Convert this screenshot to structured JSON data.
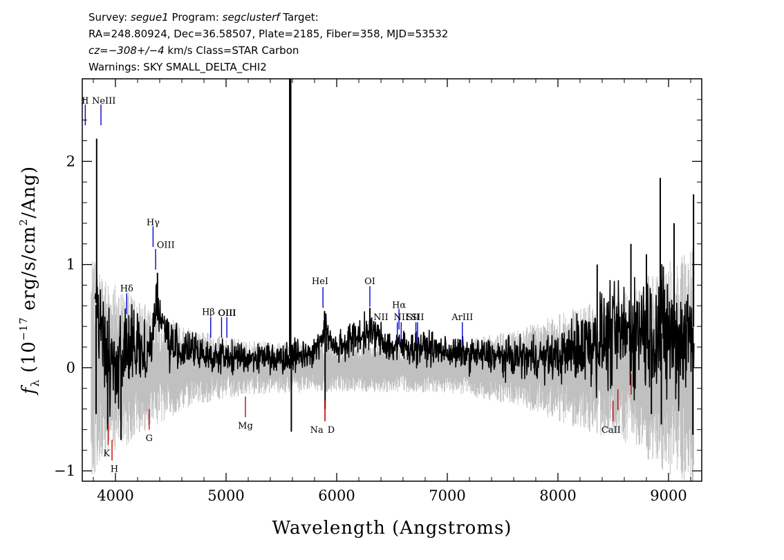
{
  "header": {
    "line1": {
      "survey_label": "Survey: ",
      "survey": "segue1",
      "program_label": " Program: ",
      "program": "segclusterf",
      "target_label": " Target:"
    },
    "line2": "RA=248.80924, Dec=36.58507, Plate=2185, Fiber=358, MJD=53532",
    "line3": {
      "cz_label": "cz=",
      "cz_value": "−308+/−4",
      "cz_rest": " km/s Class=STAR Carbon"
    },
    "line4": "Warnings: SKY SMALL_DELTA_CHI2"
  },
  "colors": {
    "flux": "#000000",
    "error": "#c0c0c0",
    "emission": "#0000cc",
    "absorption": "#cc0000"
  },
  "chart_data": {
    "type": "line",
    "xlabel": "Wavelength (Angstroms)",
    "ylabel": {
      "f": "f",
      "sub": "λ",
      "pre": " (10",
      "exp": "−17",
      "mid": " erg/s/cm",
      "exp2": "2",
      "post": "/Ang)"
    },
    "xlim": [
      3700,
      9300
    ],
    "ylim": [
      -1.1,
      2.8
    ],
    "x_ticks": [
      4000,
      5000,
      6000,
      7000,
      8000,
      9000
    ],
    "x_tick_labels": [
      "4000",
      "5000",
      "6000",
      "7000",
      "8000",
      "9000"
    ],
    "y_ticks": [
      -1,
      0,
      1,
      2
    ],
    "y_tick_labels": [
      "−1",
      "0",
      "1",
      "2"
    ],
    "flux_profile": [
      [
        3800,
        0.15
      ],
      [
        3830,
        0.7
      ],
      [
        3900,
        0.15
      ],
      [
        4000,
        0.05
      ],
      [
        4100,
        0.2
      ],
      [
        4200,
        0.15
      ],
      [
        4300,
        0.15
      ],
      [
        4380,
        0.6
      ],
      [
        4500,
        0.2
      ],
      [
        4700,
        0.15
      ],
      [
        5000,
        0.1
      ],
      [
        5500,
        0.1
      ],
      [
        5800,
        0.15
      ],
      [
        5890,
        0.35
      ],
      [
        6000,
        0.2
      ],
      [
        6300,
        0.35
      ],
      [
        6500,
        0.2
      ],
      [
        6800,
        0.2
      ],
      [
        7000,
        0.15
      ],
      [
        7500,
        0.1
      ],
      [
        8000,
        0.1
      ],
      [
        8300,
        0.25
      ],
      [
        8500,
        0.3
      ],
      [
        8800,
        0.4
      ],
      [
        8900,
        0.35
      ],
      [
        9100,
        0.25
      ],
      [
        9230,
        0.4
      ]
    ],
    "flux_noise_profile": [
      [
        3750,
        0.35
      ],
      [
        4000,
        0.3
      ],
      [
        4500,
        0.15
      ],
      [
        5000,
        0.1
      ],
      [
        5500,
        0.1
      ],
      [
        6000,
        0.12
      ],
      [
        6500,
        0.12
      ],
      [
        7000,
        0.1
      ],
      [
        7500,
        0.12
      ],
      [
        8000,
        0.15
      ],
      [
        8300,
        0.3
      ],
      [
        8600,
        0.35
      ],
      [
        8900,
        0.45
      ],
      [
        9230,
        0.4
      ]
    ],
    "error_profile": [
      [
        3750,
        0.9
      ],
      [
        4000,
        0.7
      ],
      [
        4300,
        0.5
      ],
      [
        4700,
        0.3
      ],
      [
        5200,
        0.22
      ],
      [
        6000,
        0.2
      ],
      [
        7000,
        0.2
      ],
      [
        7600,
        0.3
      ],
      [
        8200,
        0.5
      ],
      [
        8600,
        0.6
      ],
      [
        8900,
        0.8
      ],
      [
        9230,
        1.0
      ]
    ],
    "flux_spikes": [
      {
        "x": 3830,
        "y": 2.22
      },
      {
        "x": 3825,
        "y": -0.45
      },
      {
        "x": 3930,
        "y": -0.6
      },
      {
        "x": 4050,
        "y": -0.7
      },
      {
        "x": 4380,
        "y": 0.92
      },
      {
        "x": 5580,
        "y": 2.8
      },
      {
        "x": 5590,
        "y": -0.62
      },
      {
        "x": 5890,
        "y": 0.55
      },
      {
        "x": 5895,
        "y": -0.4
      },
      {
        "x": 6300,
        "y": 0.58
      },
      {
        "x": 8355,
        "y": 1.0
      },
      {
        "x": 8660,
        "y": 1.2
      },
      {
        "x": 8800,
        "y": 1.1
      },
      {
        "x": 8845,
        "y": -0.45
      },
      {
        "x": 8925,
        "y": 1.84
      },
      {
        "x": 8935,
        "y": -0.55
      },
      {
        "x": 9050,
        "y": 1.4
      },
      {
        "x": 9220,
        "y": -0.65
      },
      {
        "x": 9226,
        "y": 1.68
      }
    ],
    "emission_lines": [
      {
        "label": "II",
        "x": 3727,
        "y0": 2.35,
        "y1": 2.55,
        "lx": 3727,
        "ly": 2.56
      },
      {
        "label": "NeIII",
        "x": 3869,
        "y0": 2.35,
        "y1": 2.55,
        "lx": 3895,
        "ly": 2.56
      },
      {
        "label": "Hγ",
        "x": 4340,
        "y0": 1.17,
        "y1": 1.37,
        "lx": 4340,
        "ly": 1.38
      },
      {
        "label": "OIII",
        "x": 4363,
        "y0": 0.95,
        "y1": 1.15,
        "lx": 4455,
        "ly": 1.16
      },
      {
        "label": "Hδ",
        "x": 4102,
        "y0": 0.52,
        "y1": 0.72,
        "lx": 4102,
        "ly": 0.74
      },
      {
        "label": "Hβ",
        "x": 4861,
        "y0": 0.29,
        "y1": 0.49,
        "lx": 4840,
        "ly": 0.51
      },
      {
        "label": "OIII",
        "x": 4959,
        "y0": 0.29,
        "y1": 0.49,
        "lx": 5010,
        "ly": 0.5
      },
      {
        "label": "OIII",
        "x": 5007,
        "y0": 0.29,
        "y1": 0.49,
        "lx": 5007,
        "ly": 0.5
      },
      {
        "label": "HeI",
        "x": 5876,
        "y0": 0.58,
        "y1": 0.78,
        "lx": 5850,
        "ly": 0.81
      },
      {
        "label": "OI",
        "x": 6300,
        "y0": 0.59,
        "y1": 0.79,
        "lx": 6300,
        "ly": 0.81
      },
      {
        "label": "Hα",
        "x": 6563,
        "y0": 0.37,
        "y1": 0.57,
        "lx": 6563,
        "ly": 0.58
      },
      {
        "label": "NII",
        "x": 6548,
        "y0": 0.24,
        "y1": 0.44,
        "lx": 6400,
        "ly": 0.46
      },
      {
        "label": "NII",
        "x": 6583,
        "y0": 0.24,
        "y1": 0.44,
        "lx": 6583,
        "ly": 0.46
      },
      {
        "label": "SII",
        "x": 6716,
        "y0": 0.24,
        "y1": 0.44,
        "lx": 6690,
        "ly": 0.46
      },
      {
        "label": "SII",
        "x": 6731,
        "y0": 0.24,
        "y1": 0.44,
        "lx": 6731,
        "ly": 0.46
      },
      {
        "label": "ArIII",
        "x": 7136,
        "y0": 0.24,
        "y1": 0.44,
        "lx": 7136,
        "ly": 0.46
      }
    ],
    "absorption_lines": [
      {
        "label": "K",
        "x": 3934,
        "y0": -0.75,
        "y1": -0.55,
        "lx": 3920,
        "ly": -0.86
      },
      {
        "label": "H",
        "x": 3969,
        "y0": -0.9,
        "y1": -0.7,
        "lx": 3990,
        "ly": -1.01
      },
      {
        "label": "G",
        "x": 4305,
        "y0": -0.6,
        "y1": -0.4,
        "lx": 4305,
        "ly": -0.71
      },
      {
        "label": "Mg",
        "x": 5175,
        "y0": -0.48,
        "y1": -0.28,
        "lx": 5175,
        "ly": -0.59
      },
      {
        "label": "Na",
        "x": 5894,
        "y0": -0.52,
        "y1": -0.32,
        "lx": 5820,
        "ly": -0.63
      },
      {
        "label": "D",
        "x": 5894,
        "y0": -0.52,
        "y1": -0.32,
        "lx": 5950,
        "ly": -0.63
      },
      {
        "label": "CaII",
        "x": 8498,
        "y0": -0.52,
        "y1": -0.32,
        "lx": 8480,
        "ly": -0.63
      },
      {
        "label": "",
        "x": 8542,
        "y0": -0.41,
        "y1": -0.21,
        "lx": 8542,
        "ly": -0.52
      },
      {
        "label": "",
        "x": 8662,
        "y0": -0.26,
        "y1": -0.06,
        "lx": 8662,
        "ly": -0.37
      }
    ]
  }
}
